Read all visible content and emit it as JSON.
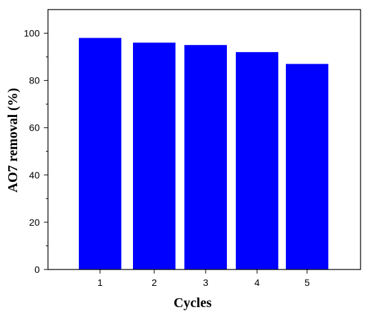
{
  "chart_data": {
    "type": "bar",
    "title": "",
    "xlabel": "Cycles",
    "ylabel": "AO7 removal (%)",
    "categories": [
      "1",
      "2",
      "3",
      "4",
      "5"
    ],
    "values": [
      98,
      96,
      95,
      92,
      87
    ],
    "ylim": [
      0,
      110
    ],
    "yticks": [
      0,
      20,
      40,
      60,
      80,
      100
    ],
    "bar_color": "#0000ff",
    "grid": false,
    "legend": "none"
  }
}
